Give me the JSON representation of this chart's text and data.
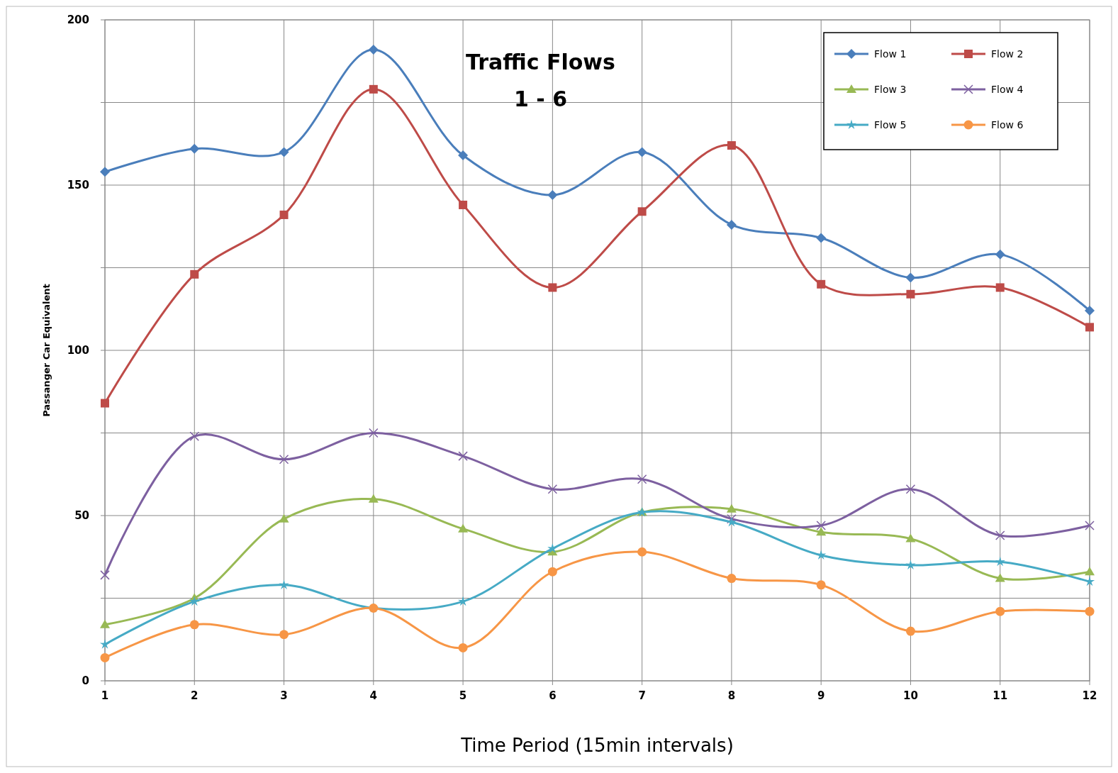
{
  "chart_data": {
    "type": "line",
    "title": "Traffic Flows\n1 - 6",
    "xlabel": "Time Period (15min intervals)",
    "ylabel": "Passanger Car Equivalent",
    "x": [
      1,
      2,
      3,
      4,
      5,
      6,
      7,
      8,
      9,
      10,
      11,
      12
    ],
    "xlim": [
      1,
      12
    ],
    "xticks": [
      1,
      2,
      3,
      4,
      5,
      6,
      7,
      8,
      9,
      10,
      11,
      12
    ],
    "ylim": [
      0,
      200
    ],
    "yticks": [
      0,
      {
        "value": 25,
        "label": null
      },
      50,
      {
        "value": 75,
        "label": null
      },
      100,
      {
        "value": 125,
        "label": null
      },
      150,
      {
        "value": 175,
        "label": null
      },
      200
    ],
    "grid": true,
    "legend": "top right",
    "series": [
      {
        "name": "Flow 1",
        "color": "#4a7ebb",
        "marker": "diamond",
        "values": [
          154,
          161,
          160,
          191,
          159,
          147,
          160,
          138,
          134,
          122,
          129,
          112
        ]
      },
      {
        "name": "Flow 2",
        "color": "#be4b48",
        "marker": "square",
        "values": [
          84,
          123,
          141,
          179,
          144,
          119,
          142,
          162,
          120,
          117,
          119,
          107
        ]
      },
      {
        "name": "Flow 3",
        "color": "#98b954",
        "marker": "triangle",
        "values": [
          17,
          25,
          49,
          55,
          46,
          39,
          51,
          52,
          45,
          43,
          31,
          33
        ]
      },
      {
        "name": "Flow 4",
        "color": "#7d60a0",
        "marker": "cross",
        "values": [
          32,
          74,
          67,
          75,
          68,
          58,
          61,
          49,
          47,
          58,
          44,
          47
        ]
      },
      {
        "name": "Flow 5",
        "color": "#46aac5",
        "marker": "star",
        "values": [
          11,
          24,
          29,
          22,
          24,
          40,
          51,
          48,
          38,
          35,
          36,
          30
        ]
      },
      {
        "name": "Flow 6",
        "color": "#f79646",
        "marker": "circle",
        "values": [
          7,
          17,
          14,
          22,
          10,
          33,
          39,
          31,
          29,
          15,
          21,
          21
        ]
      }
    ]
  }
}
